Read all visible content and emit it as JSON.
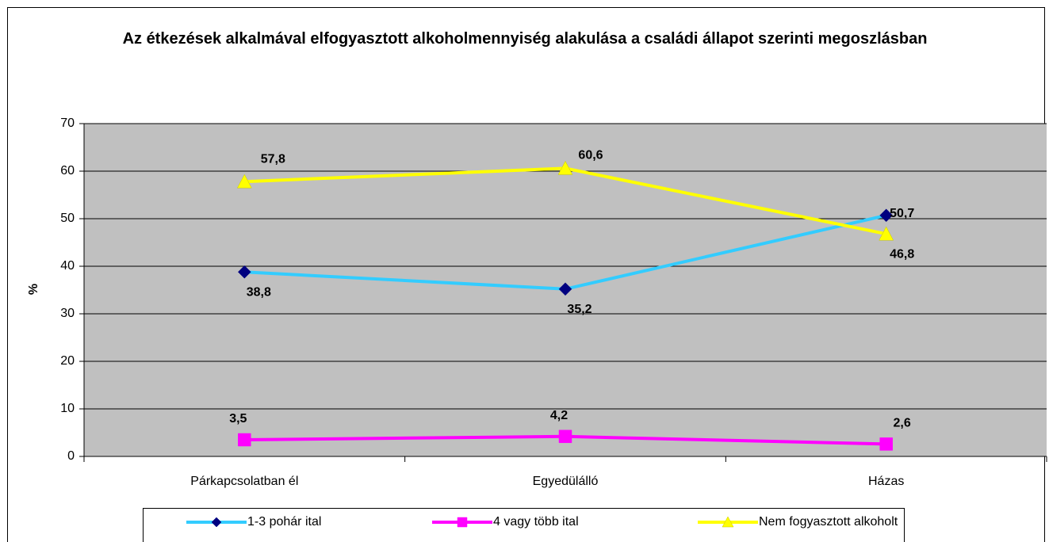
{
  "chart_data": {
    "type": "line",
    "title": "Az étkezések alkalmával elfogyasztott alkoholmennyiség alakulása a családi állapot szerinti megoszlásban",
    "ylabel": "%",
    "categories": [
      "Párkapcsolatban él",
      "Egyedülálló",
      "Házas"
    ],
    "series": [
      {
        "name": "1-3 pohár ital",
        "color": "#33ccff",
        "marker": "diamond",
        "marker_color": "#000080",
        "values": [
          38.8,
          35.2,
          50.7
        ],
        "value_labels": [
          "38,8",
          "35,2",
          "50,7"
        ]
      },
      {
        "name": "4 vagy több ital",
        "color": "#ff00ff",
        "marker": "square",
        "marker_color": "#ff00ff",
        "values": [
          3.5,
          4.2,
          2.6
        ],
        "value_labels": [
          "3,5",
          "4,2",
          "2,6"
        ]
      },
      {
        "name": "Nem fogyasztott alkoholt",
        "color": "#ffff00",
        "marker": "triangle",
        "marker_color": "#ffff00",
        "values": [
          57.8,
          60.6,
          46.8
        ],
        "value_labels": [
          "57,8",
          "60,6",
          "46,8"
        ]
      }
    ],
    "ylim": [
      0,
      70
    ],
    "yticks": [
      0,
      10,
      20,
      30,
      40,
      50,
      60,
      70
    ],
    "grid": true,
    "plot_background": "#c0c0c0"
  }
}
